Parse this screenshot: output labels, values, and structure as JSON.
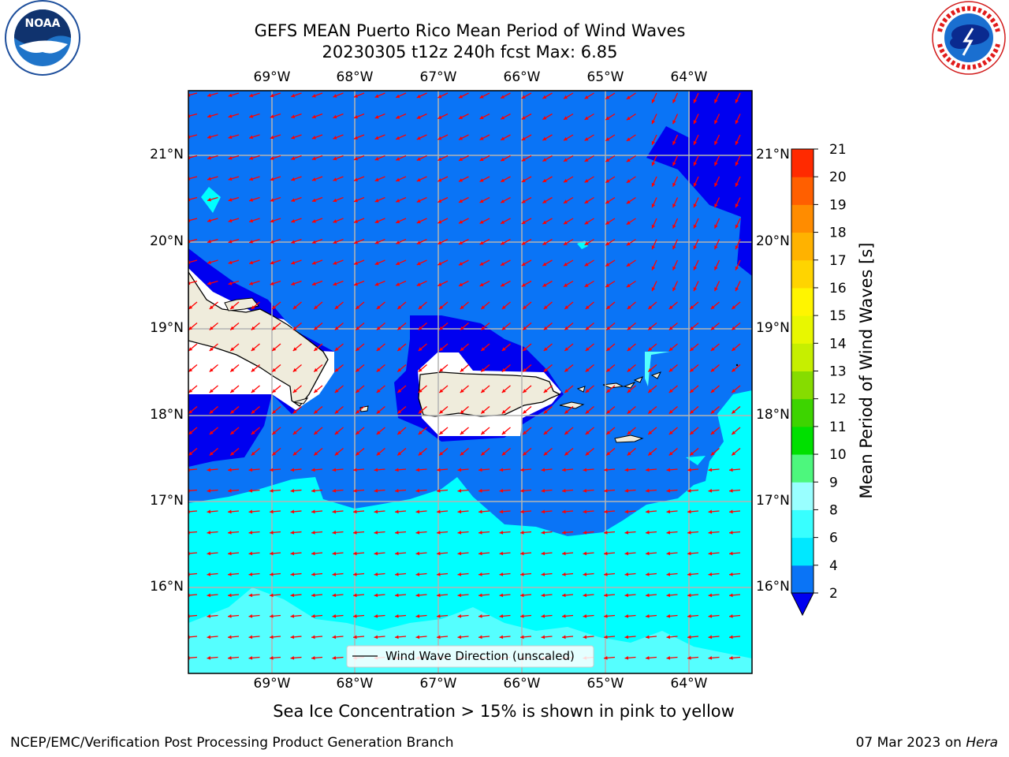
{
  "header": {
    "title_line1": "GEFS MEAN Puerto Rico Mean Period of Wind Waves",
    "title_line2": "20230305 t12z 240h fcst   Max: 6.85"
  },
  "logos": {
    "left": "noaa-logo",
    "right": "national-weather-service-logo"
  },
  "map": {
    "lon_labels": [
      "69°W",
      "68°W",
      "67°W",
      "66°W",
      "65°W",
      "64°W"
    ],
    "lat_labels": [
      "21°N",
      "20°N",
      "19°N",
      "18°N",
      "17°N",
      "16°N"
    ],
    "legend": "Wind Wave Direction (unscaled)",
    "arrow_color": "#ff0000",
    "land_color": "#efecdc"
  },
  "colorbar": {
    "label": "Mean Period of Wind Waves [s]",
    "ticks": [
      "2",
      "4",
      "6",
      "8",
      "9",
      "10",
      "11",
      "12",
      "13",
      "14",
      "15",
      "16",
      "17",
      "18",
      "19",
      "20",
      "21"
    ],
    "colors": [
      "#0a74f6",
      "#00e8ff",
      "#38ffff",
      "#99ffff",
      "#4df77d",
      "#00e000",
      "#3dd400",
      "#86dc00",
      "#c6ef00",
      "#e8f700",
      "#fff500",
      "#ffd400",
      "#ffb200",
      "#ff8c00",
      "#ff5f00",
      "#ff2a00"
    ],
    "extend_color": "#0000f0"
  },
  "subtitle": "Sea Ice Concentration > 15% is shown in pink to yellow",
  "footer": {
    "left": "NCEP/EMC/Verification Post Processing Product Generation Branch",
    "right_prefix": "07 Mar 2023 on ",
    "right_host": "Hera"
  }
}
